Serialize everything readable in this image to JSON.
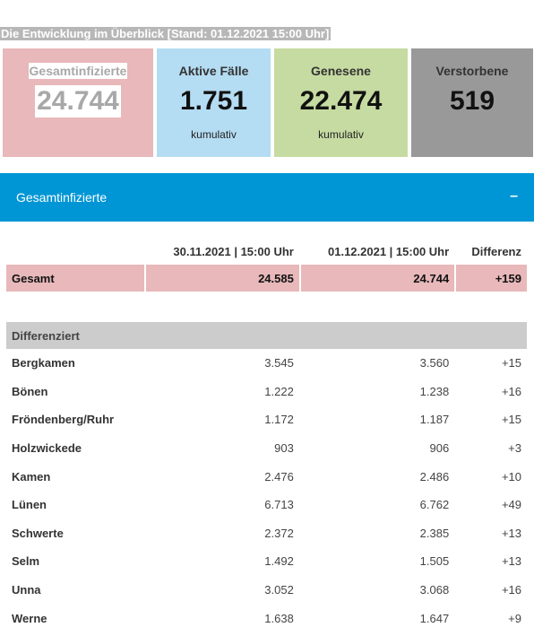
{
  "header": {
    "title": "Die Entwicklung im Überblick [Stand: 01.12.2021 15:00 Uhr]"
  },
  "tiles": {
    "total": {
      "label": "Gesamtinfizierte",
      "value": "24.744"
    },
    "active": {
      "label": "Aktive Fälle",
      "value": "1.751",
      "sub": "kumulativ"
    },
    "recovered": {
      "label": "Genesene",
      "value": "22.474",
      "sub": "kumulativ"
    },
    "deceased": {
      "label": "Verstorbene",
      "value": "519"
    }
  },
  "accordion": {
    "title": "Gesamtinfizierte",
    "toggle": "–"
  },
  "table": {
    "headers": [
      "",
      "30.11.2021 | 15:00 Uhr",
      "01.12.2021 | 15:00 Uhr",
      "Differenz"
    ],
    "total": {
      "label": "Gesamt",
      "prev": "24.585",
      "curr": "24.744",
      "diff": "+159"
    },
    "section_label": "Differenziert",
    "rows": [
      {
        "name": "Bergkamen",
        "prev": "3.545",
        "curr": "3.560",
        "diff": "+15"
      },
      {
        "name": "Bönen",
        "prev": "1.222",
        "curr": "1.238",
        "diff": "+16"
      },
      {
        "name": "Fröndenberg/Ruhr",
        "prev": "1.172",
        "curr": "1.187",
        "diff": "+15"
      },
      {
        "name": "Holzwickede",
        "prev": "903",
        "curr": "906",
        "diff": "+3"
      },
      {
        "name": "Kamen",
        "prev": "2.476",
        "curr": "2.486",
        "diff": "+10"
      },
      {
        "name": "Lünen",
        "prev": "6.713",
        "curr": "6.762",
        "diff": "+49"
      },
      {
        "name": "Schwerte",
        "prev": "2.372",
        "curr": "2.385",
        "diff": "+13"
      },
      {
        "name": "Selm",
        "prev": "1.492",
        "curr": "1.505",
        "diff": "+13"
      },
      {
        "name": "Unna",
        "prev": "3.052",
        "curr": "3.068",
        "diff": "+16"
      },
      {
        "name": "Werne",
        "prev": "1.638",
        "curr": "1.647",
        "diff": "+9"
      }
    ]
  }
}
